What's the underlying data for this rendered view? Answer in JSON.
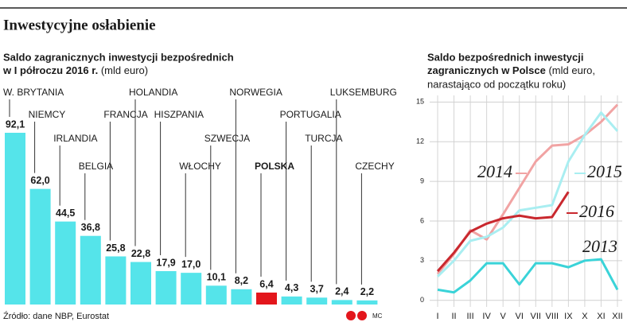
{
  "page": {
    "title": "Inwestycyjne osłabienie",
    "source": "Źródło: dane NBP, Eurostat",
    "credit": "MC"
  },
  "chart_data": [
    {
      "type": "bar",
      "subtitle": [
        "Saldo zagranicznych inwestycji bezpośrednich",
        "w I półroczu 2016 r."
      ],
      "unit": "(mld euro)",
      "categories": [
        "W. BRYTANIA",
        "NIEMCY",
        "IRLANDIA",
        "BELGIA",
        "FRANCJA",
        "HOLANDIA",
        "HISZPANIA",
        "WŁOCHY",
        "SZWECJA",
        "NORWEGIA",
        "POLSKA",
        "PORTUGALIA",
        "TURCJA",
        "LUKSEMBURG",
        "CZECHY"
      ],
      "values": [
        92.1,
        62.0,
        44.5,
        36.8,
        25.8,
        22.8,
        17.9,
        17.0,
        10.1,
        8.2,
        6.4,
        4.3,
        3.7,
        2.4,
        2.2
      ],
      "value_labels": [
        "92,1",
        "62,0",
        "44,5",
        "36,8",
        "25,8",
        "22,8",
        "17,9",
        "17,0",
        "10,1",
        "8,2",
        "6,4",
        "4,3",
        "3,7",
        "2,4",
        "2,2"
      ],
      "colors": [
        "#55e4ea",
        "#55e4ea",
        "#55e4ea",
        "#55e4ea",
        "#55e4ea",
        "#55e4ea",
        "#55e4ea",
        "#55e4ea",
        "#55e4ea",
        "#55e4ea",
        "#e3161c",
        "#55e4ea",
        "#55e4ea",
        "#55e4ea",
        "#55e4ea"
      ]
    },
    {
      "type": "line",
      "title": [
        "Saldo bezpośrednich inwestycji",
        "zagranicznych w Polsce"
      ],
      "unit": [
        "(mld euro,",
        "narastająco od początku roku)"
      ],
      "categories": [
        "I",
        "II",
        "III",
        "IV",
        "V",
        "VI",
        "VII",
        "VIII",
        "IX",
        "X",
        "XI",
        "XII"
      ],
      "ylim": [
        -0.5,
        15.5
      ],
      "yticks": [
        0,
        3,
        6,
        9,
        12,
        15
      ],
      "grid": true,
      "series": [
        {
          "name": "2014",
          "color": "#f1a3a3",
          "values": [
            2.0,
            3.5,
            5.3,
            4.6,
            6.5,
            8.5,
            10.5,
            11.7,
            11.8,
            12.5,
            13.5,
            14.8
          ]
        },
        {
          "name": "2015",
          "color": "#a9eef1",
          "values": [
            1.8,
            3.0,
            4.5,
            4.8,
            5.5,
            6.8,
            7.0,
            7.2,
            10.5,
            12.5,
            14.2,
            12.8
          ]
        },
        {
          "name": "2016",
          "color": "#c9282e",
          "values": [
            2.2,
            3.6,
            5.2,
            5.8,
            6.2,
            6.4,
            6.2,
            6.3,
            8.2,
            null,
            null,
            null
          ]
        },
        {
          "name": "2013",
          "color": "#3ad3d8",
          "values": [
            0.8,
            0.6,
            1.5,
            2.8,
            2.8,
            1.2,
            2.8,
            2.8,
            2.5,
            3.0,
            3.1,
            0.8
          ]
        }
      ]
    }
  ]
}
